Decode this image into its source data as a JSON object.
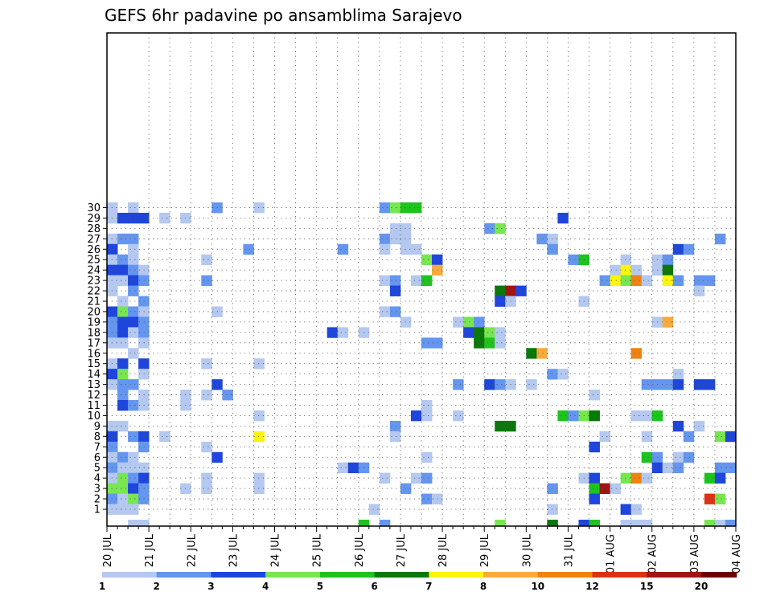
{
  "chart_data": {
    "type": "heatmap",
    "title": "GEFS 6hr padavine po ansamblima Sarajevo",
    "xlabel": "",
    "ylabel": "",
    "grid": true,
    "x_start_label": "20 JUL",
    "steps_per_day": 4,
    "n_steps": 60,
    "y_labels": [
      "1",
      "2",
      "3",
      "4",
      "5",
      "6",
      "7",
      "8",
      "9",
      "10",
      "11",
      "12",
      "13",
      "14",
      "15",
      "16",
      "17",
      "18",
      "19",
      "20",
      "21",
      "22",
      "23",
      "24",
      "25",
      "26",
      "27",
      "28",
      "29",
      "30"
    ],
    "x_tick_labels": [
      "20 JUL",
      "21 JUL",
      "22 JUL",
      "23 JUL",
      "24 JUL",
      "25 JUL",
      "26 JUL",
      "27 JUL",
      "28 JUL",
      "29 JUL",
      "30 JUL",
      "31 JUL",
      "01 AUG",
      "02 AUG",
      "03 AUG",
      "04 AUG"
    ],
    "colorbar": {
      "labels": [
        "1",
        "2",
        "3",
        "4",
        "5",
        "6",
        "7",
        "8",
        "10",
        "12",
        "15",
        "20"
      ],
      "colors": [
        "#b4c8f0",
        "#6496f0",
        "#1e46dc",
        "#78e650",
        "#1ec31e",
        "#0a780a",
        "#faf50a",
        "#faaa3c",
        "#f0820f",
        "#dc3214",
        "#a01414",
        "#6e0000"
      ]
    },
    "units": "mm",
    "cells": [
      [
        30,
        1,
        1
      ],
      [
        30,
        3,
        1
      ],
      [
        30,
        11,
        2
      ],
      [
        30,
        15,
        1
      ],
      [
        30,
        27,
        2
      ],
      [
        30,
        28,
        4
      ],
      [
        30,
        29,
        5
      ],
      [
        30,
        30,
        5
      ],
      [
        29,
        1,
        1
      ],
      [
        29,
        2,
        3
      ],
      [
        29,
        3,
        3
      ],
      [
        29,
        4,
        3
      ],
      [
        29,
        6,
        1
      ],
      [
        29,
        8,
        1
      ],
      [
        29,
        44,
        3
      ],
      [
        28,
        28,
        1
      ],
      [
        28,
        29,
        1
      ],
      [
        28,
        37,
        2
      ],
      [
        28,
        38,
        4
      ],
      [
        27,
        1,
        1
      ],
      [
        27,
        2,
        2
      ],
      [
        27,
        3,
        2
      ],
      [
        27,
        27,
        2
      ],
      [
        27,
        28,
        1
      ],
      [
        27,
        29,
        1
      ],
      [
        27,
        42,
        2
      ],
      [
        27,
        43,
        1
      ],
      [
        27,
        59,
        2
      ],
      [
        26,
        1,
        3
      ],
      [
        26,
        3,
        1
      ],
      [
        26,
        14,
        2
      ],
      [
        26,
        23,
        2
      ],
      [
        26,
        27,
        1
      ],
      [
        26,
        29,
        1
      ],
      [
        26,
        30,
        1
      ],
      [
        26,
        43,
        2
      ],
      [
        26,
        55,
        3
      ],
      [
        26,
        56,
        2
      ],
      [
        25,
        1,
        1
      ],
      [
        25,
        2,
        2
      ],
      [
        25,
        3,
        1
      ],
      [
        25,
        10,
        1
      ],
      [
        25,
        31,
        4
      ],
      [
        25,
        32,
        3
      ],
      [
        25,
        45,
        2
      ],
      [
        25,
        46,
        5
      ],
      [
        25,
        50,
        1
      ],
      [
        25,
        53,
        1
      ],
      [
        25,
        54,
        2
      ],
      [
        24,
        1,
        3
      ],
      [
        24,
        2,
        3
      ],
      [
        24,
        3,
        2
      ],
      [
        24,
        4,
        1
      ],
      [
        24,
        32,
        8
      ],
      [
        24,
        49,
        1
      ],
      [
        24,
        50,
        7
      ],
      [
        24,
        51,
        1
      ],
      [
        24,
        53,
        1
      ],
      [
        24,
        54,
        6
      ],
      [
        23,
        1,
        1
      ],
      [
        23,
        2,
        1
      ],
      [
        23,
        3,
        3
      ],
      [
        23,
        4,
        2
      ],
      [
        23,
        10,
        2
      ],
      [
        23,
        27,
        1
      ],
      [
        23,
        28,
        2
      ],
      [
        23,
        30,
        1
      ],
      [
        23,
        31,
        5
      ],
      [
        23,
        48,
        2
      ],
      [
        23,
        49,
        7
      ],
      [
        23,
        50,
        4
      ],
      [
        23,
        51,
        9
      ],
      [
        23,
        52,
        1
      ],
      [
        23,
        54,
        7
      ],
      [
        23,
        55,
        2
      ],
      [
        23,
        57,
        2
      ],
      [
        23,
        58,
        2
      ],
      [
        22,
        1,
        1
      ],
      [
        22,
        3,
        2
      ],
      [
        22,
        28,
        3
      ],
      [
        22,
        38,
        6
      ],
      [
        22,
        39,
        11
      ],
      [
        22,
        40,
        3
      ],
      [
        22,
        57,
        1
      ],
      [
        21,
        2,
        1
      ],
      [
        21,
        4,
        2
      ],
      [
        21,
        38,
        3
      ],
      [
        21,
        39,
        1
      ],
      [
        21,
        46,
        1
      ],
      [
        20,
        1,
        3
      ],
      [
        20,
        2,
        4
      ],
      [
        20,
        3,
        2
      ],
      [
        20,
        4,
        1
      ],
      [
        20,
        11,
        1
      ],
      [
        20,
        27,
        1
      ],
      [
        20,
        28,
        2
      ],
      [
        19,
        1,
        2
      ],
      [
        19,
        2,
        3
      ],
      [
        19,
        3,
        3
      ],
      [
        19,
        4,
        2
      ],
      [
        19,
        29,
        1
      ],
      [
        19,
        34,
        1
      ],
      [
        19,
        35,
        4
      ],
      [
        19,
        36,
        2
      ],
      [
        19,
        53,
        1
      ],
      [
        19,
        54,
        8
      ],
      [
        18,
        1,
        2
      ],
      [
        18,
        2,
        3
      ],
      [
        18,
        3,
        1
      ],
      [
        18,
        4,
        2
      ],
      [
        18,
        22,
        3
      ],
      [
        18,
        23,
        1
      ],
      [
        18,
        25,
        1
      ],
      [
        18,
        35,
        3
      ],
      [
        18,
        36,
        6
      ],
      [
        18,
        37,
        4
      ],
      [
        18,
        38,
        1
      ],
      [
        17,
        1,
        1
      ],
      [
        17,
        2,
        1
      ],
      [
        17,
        4,
        1
      ],
      [
        17,
        31,
        2
      ],
      [
        17,
        32,
        2
      ],
      [
        17,
        36,
        6
      ],
      [
        17,
        37,
        5
      ],
      [
        17,
        38,
        1
      ],
      [
        16,
        3,
        1
      ],
      [
        16,
        41,
        6
      ],
      [
        16,
        42,
        8
      ],
      [
        16,
        51,
        9
      ],
      [
        15,
        1,
        1
      ],
      [
        15,
        2,
        3
      ],
      [
        15,
        4,
        3
      ],
      [
        15,
        10,
        1
      ],
      [
        15,
        15,
        1
      ],
      [
        14,
        1,
        3
      ],
      [
        14,
        2,
        4
      ],
      [
        14,
        4,
        1
      ],
      [
        14,
        43,
        2
      ],
      [
        14,
        44,
        1
      ],
      [
        14,
        55,
        1
      ],
      [
        13,
        1,
        1
      ],
      [
        13,
        2,
        2
      ],
      [
        13,
        3,
        2
      ],
      [
        13,
        11,
        3
      ],
      [
        13,
        34,
        2
      ],
      [
        13,
        37,
        3
      ],
      [
        13,
        38,
        2
      ],
      [
        13,
        39,
        1
      ],
      [
        13,
        41,
        1
      ],
      [
        13,
        52,
        2
      ],
      [
        13,
        53,
        2
      ],
      [
        13,
        54,
        2
      ],
      [
        13,
        55,
        3
      ],
      [
        13,
        57,
        3
      ],
      [
        13,
        58,
        3
      ],
      [
        12,
        2,
        2
      ],
      [
        12,
        4,
        1
      ],
      [
        12,
        8,
        1
      ],
      [
        12,
        10,
        1
      ],
      [
        12,
        12,
        2
      ],
      [
        12,
        47,
        1
      ],
      [
        11,
        2,
        3
      ],
      [
        11,
        3,
        2
      ],
      [
        11,
        4,
        1
      ],
      [
        11,
        8,
        1
      ],
      [
        11,
        31,
        1
      ],
      [
        10,
        15,
        1
      ],
      [
        10,
        30,
        3
      ],
      [
        10,
        31,
        1
      ],
      [
        10,
        34,
        1
      ],
      [
        10,
        44,
        5
      ],
      [
        10,
        45,
        2
      ],
      [
        10,
        46,
        4
      ],
      [
        10,
        47,
        6
      ],
      [
        10,
        51,
        1
      ],
      [
        10,
        52,
        1
      ],
      [
        10,
        53,
        5
      ],
      [
        9,
        1,
        1
      ],
      [
        9,
        2,
        1
      ],
      [
        9,
        28,
        2
      ],
      [
        9,
        38,
        6
      ],
      [
        9,
        39,
        6
      ],
      [
        9,
        55,
        3
      ],
      [
        9,
        57,
        1
      ],
      [
        8,
        1,
        3
      ],
      [
        8,
        3,
        2
      ],
      [
        8,
        4,
        3
      ],
      [
        8,
        6,
        1
      ],
      [
        8,
        15,
        7
      ],
      [
        8,
        28,
        1
      ],
      [
        8,
        48,
        1
      ],
      [
        8,
        52,
        1
      ],
      [
        8,
        56,
        2
      ],
      [
        8,
        59,
        4
      ],
      [
        8,
        60,
        3
      ],
      [
        7,
        1,
        2
      ],
      [
        7,
        4,
        2
      ],
      [
        7,
        10,
        1
      ],
      [
        7,
        47,
        3
      ],
      [
        6,
        1,
        1
      ],
      [
        6,
        2,
        2
      ],
      [
        6,
        3,
        1
      ],
      [
        6,
        11,
        3
      ],
      [
        6,
        31,
        1
      ],
      [
        6,
        52,
        5
      ],
      [
        6,
        53,
        2
      ],
      [
        6,
        55,
        1
      ],
      [
        6,
        56,
        2
      ],
      [
        5,
        1,
        2
      ],
      [
        5,
        2,
        1
      ],
      [
        5,
        3,
        1
      ],
      [
        5,
        4,
        1
      ],
      [
        5,
        23,
        1
      ],
      [
        5,
        24,
        3
      ],
      [
        5,
        25,
        2
      ],
      [
        5,
        53,
        3
      ],
      [
        5,
        54,
        1
      ],
      [
        5,
        55,
        2
      ],
      [
        5,
        59,
        2
      ],
      [
        5,
        60,
        2
      ],
      [
        4,
        1,
        1
      ],
      [
        4,
        2,
        4
      ],
      [
        4,
        3,
        2
      ],
      [
        4,
        4,
        3
      ],
      [
        4,
        10,
        1
      ],
      [
        4,
        15,
        1
      ],
      [
        4,
        27,
        1
      ],
      [
        4,
        30,
        1
      ],
      [
        4,
        31,
        2
      ],
      [
        4,
        46,
        1
      ],
      [
        4,
        47,
        3
      ],
      [
        4,
        50,
        4
      ],
      [
        4,
        51,
        9
      ],
      [
        4,
        52,
        1
      ],
      [
        4,
        58,
        5
      ],
      [
        4,
        59,
        3
      ],
      [
        3,
        1,
        4
      ],
      [
        3,
        2,
        4
      ],
      [
        3,
        3,
        3
      ],
      [
        3,
        4,
        2
      ],
      [
        3,
        8,
        1
      ],
      [
        3,
        10,
        1
      ],
      [
        3,
        15,
        1
      ],
      [
        3,
        29,
        2
      ],
      [
        3,
        43,
        2
      ],
      [
        3,
        47,
        5
      ],
      [
        3,
        48,
        11
      ],
      [
        3,
        49,
        1
      ],
      [
        2,
        1,
        2
      ],
      [
        2,
        2,
        1
      ],
      [
        2,
        3,
        4
      ],
      [
        2,
        4,
        2
      ],
      [
        2,
        31,
        2
      ],
      [
        2,
        32,
        1
      ],
      [
        2,
        47,
        3
      ],
      [
        2,
        58,
        10
      ],
      [
        2,
        59,
        4
      ],
      [
        1,
        1,
        1
      ],
      [
        1,
        2,
        1
      ],
      [
        1,
        3,
        1
      ],
      [
        1,
        26,
        1
      ],
      [
        1,
        43,
        1
      ],
      [
        1,
        50,
        3
      ],
      [
        1,
        51,
        1
      ]
    ],
    "bottom_row_cells": [
      [
        3,
        1
      ],
      [
        4,
        1
      ],
      [
        25,
        5
      ],
      [
        27,
        2
      ],
      [
        38,
        4
      ],
      [
        43,
        6
      ],
      [
        46,
        3
      ],
      [
        47,
        5
      ],
      [
        50,
        1
      ],
      [
        51,
        1
      ],
      [
        52,
        1
      ],
      [
        58,
        4
      ],
      [
        59,
        1
      ],
      [
        60,
        2
      ]
    ]
  }
}
